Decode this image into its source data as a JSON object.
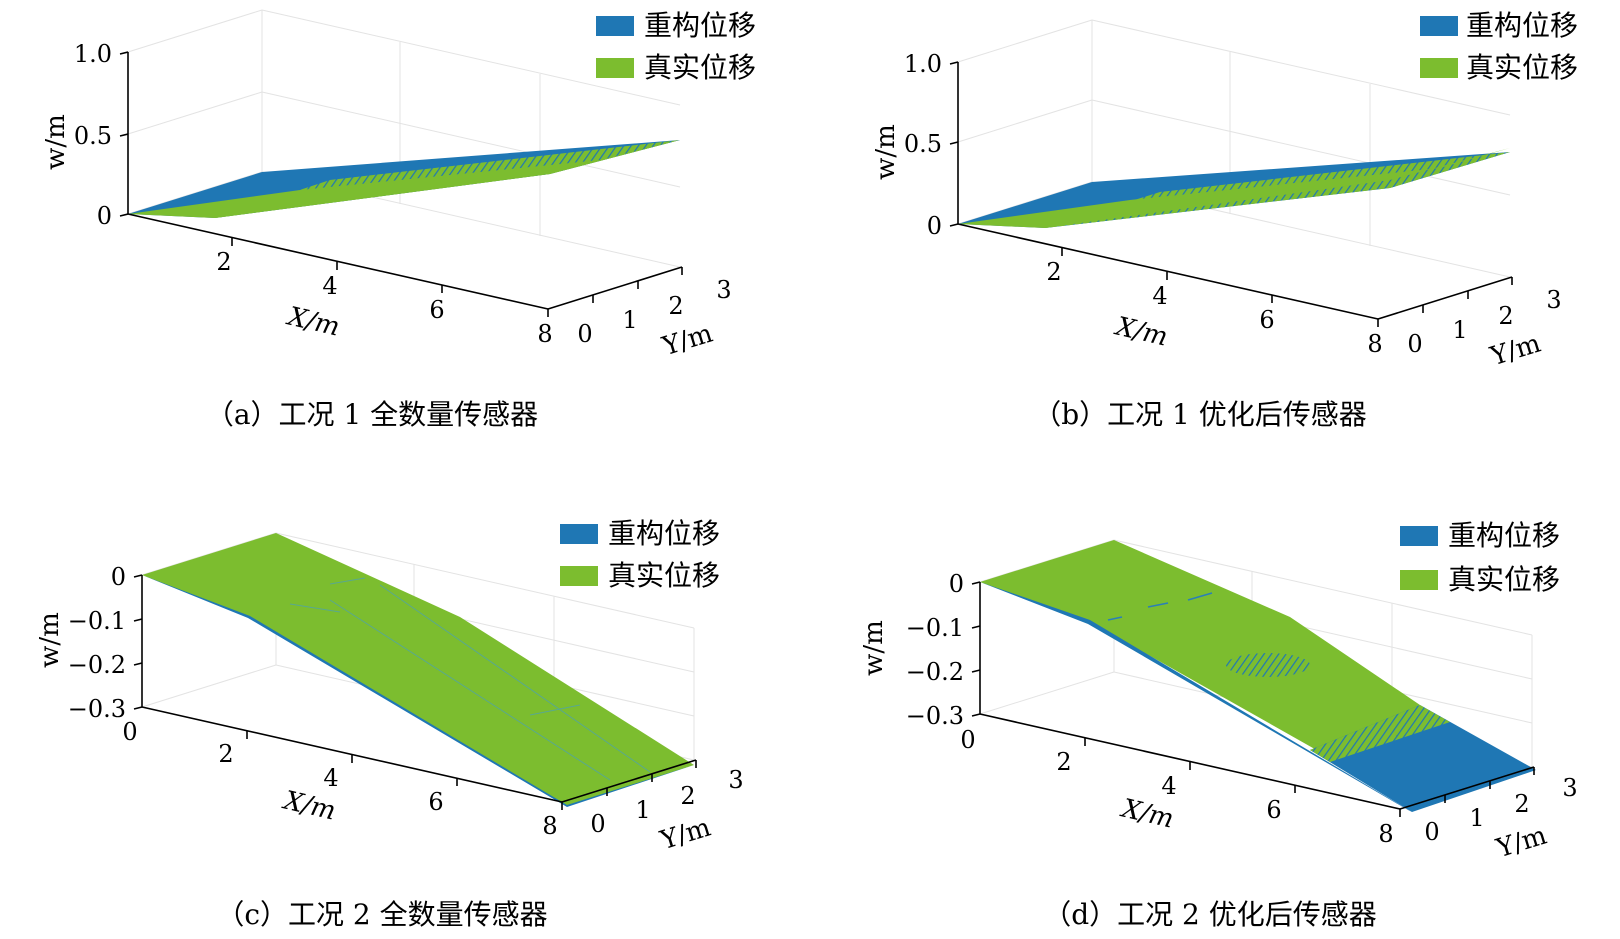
{
  "chart_data": [
    {
      "type": "surface",
      "caption": "（a）工况 1 全数量传感器",
      "zlabel": "w/m",
      "xlabel": "X/m",
      "ylabel": "Y/m",
      "x_ticks": [
        "2",
        "4",
        "6",
        "8"
      ],
      "y_ticks": [
        "0",
        "1",
        "2",
        "3"
      ],
      "z_ticks": [
        "0",
        "0.5",
        "1.0"
      ],
      "zlim": [
        0,
        1.0
      ],
      "xlim": [
        0,
        8
      ],
      "ylim": [
        0,
        3
      ],
      "legend": [
        "重构位移",
        "真实位移"
      ],
      "legend_position": "top-right",
      "grid": true,
      "series": [
        {
          "name": "重构位移",
          "color": "#1f77b4",
          "x": [
            0,
            2,
            4,
            6,
            8
          ],
          "w": [
            0,
            0.1,
            0.15,
            0.25,
            0.45
          ]
        },
        {
          "name": "真实位移",
          "color": "#7cbd2f",
          "x": [
            0,
            2,
            4,
            6,
            8
          ],
          "w": [
            0,
            0.02,
            0.12,
            0.27,
            0.46
          ]
        }
      ]
    },
    {
      "type": "surface",
      "caption": "（b）工况 1 优化后传感器",
      "zlabel": "w/m",
      "xlabel": "X/m",
      "ylabel": "Y/m",
      "x_ticks": [
        "2",
        "4",
        "6",
        "8"
      ],
      "y_ticks": [
        "0",
        "1",
        "2",
        "3"
      ],
      "z_ticks": [
        "0",
        "0.5",
        "1.0"
      ],
      "zlim": [
        0,
        1.0
      ],
      "xlim": [
        0,
        8
      ],
      "ylim": [
        0,
        3
      ],
      "legend": [
        "重构位移",
        "真实位移"
      ],
      "legend_position": "top-right",
      "grid": true,
      "series": [
        {
          "name": "重构位移",
          "color": "#1f77b4",
          "x": [
            0,
            2,
            4,
            6,
            8
          ],
          "w": [
            0,
            0.1,
            0.14,
            0.22,
            0.41
          ]
        },
        {
          "name": "真实位移",
          "color": "#7cbd2f",
          "x": [
            0,
            2,
            4,
            6,
            8
          ],
          "w": [
            0,
            0.02,
            0.12,
            0.27,
            0.46
          ]
        }
      ]
    },
    {
      "type": "surface",
      "caption": "（c）工况 2 全数量传感器",
      "zlabel": "w/m",
      "xlabel": "X/m",
      "ylabel": "Y/m",
      "x_ticks": [
        "0",
        "2",
        "4",
        "6",
        "8"
      ],
      "y_ticks": [
        "0",
        "1",
        "2",
        "3"
      ],
      "z_ticks": [
        "0",
        "−0.1",
        "−0.2",
        "−0.3"
      ],
      "zlim": [
        -0.3,
        0
      ],
      "xlim": [
        0,
        8
      ],
      "ylim": [
        0,
        3
      ],
      "legend": [
        "重构位移",
        "真实位移"
      ],
      "legend_position": "top-right",
      "grid": true,
      "series": [
        {
          "name": "重构位移",
          "color": "#1f77b4",
          "x": [
            0,
            2,
            4,
            6,
            8
          ],
          "w": [
            0,
            -0.1,
            -0.2,
            -0.27,
            -0.3
          ]
        },
        {
          "name": "真实位移",
          "color": "#7cbd2f",
          "x": [
            0,
            2,
            4,
            6,
            8
          ],
          "w": [
            0,
            -0.1,
            -0.2,
            -0.27,
            -0.3
          ]
        }
      ]
    },
    {
      "type": "surface",
      "caption": "（d）工况 2 优化后传感器",
      "zlabel": "w/m",
      "xlabel": "X/m",
      "ylabel": "Y/m",
      "x_ticks": [
        "0",
        "2",
        "4",
        "6",
        "8"
      ],
      "y_ticks": [
        "0",
        "1",
        "2",
        "3"
      ],
      "z_ticks": [
        "0",
        "−0.1",
        "−0.2",
        "−0.3"
      ],
      "zlim": [
        -0.3,
        0
      ],
      "xlim": [
        0,
        8
      ],
      "ylim": [
        0,
        3
      ],
      "legend": [
        "重构位移",
        "真实位移"
      ],
      "legend_position": "top-right",
      "grid": true,
      "series": [
        {
          "name": "重构位移",
          "color": "#1f77b4",
          "x": [
            0,
            2,
            4,
            6,
            8
          ],
          "w": [
            0,
            -0.1,
            -0.2,
            -0.29,
            -0.31
          ]
        },
        {
          "name": "真实位移",
          "color": "#7cbd2f",
          "x": [
            0,
            2,
            4,
            6,
            8
          ],
          "w": [
            0,
            -0.1,
            -0.2,
            -0.27,
            -0.3
          ]
        }
      ]
    }
  ]
}
